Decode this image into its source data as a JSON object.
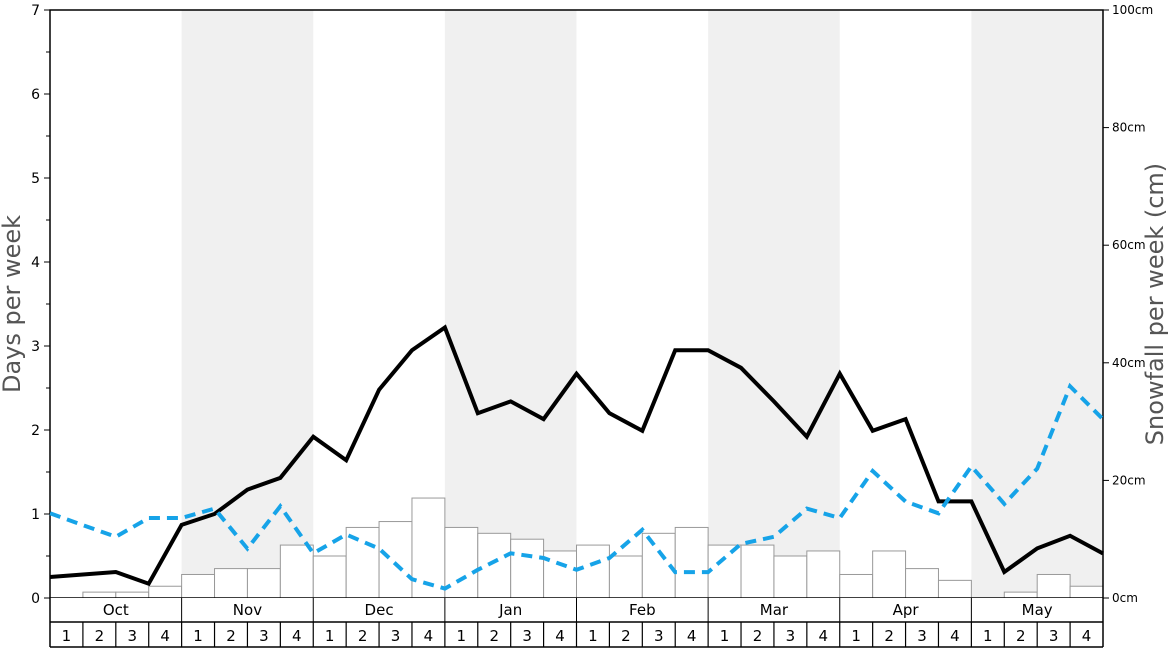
{
  "chart_data": {
    "type": "bar+line",
    "title": "",
    "ylabel_left": "Days per week",
    "ylabel_right": "Snowfall per week (cm)",
    "ylim_left": [
      0,
      7
    ],
    "ylim_right": [
      0,
      100
    ],
    "yticks_left": [
      "0",
      "1",
      "2",
      "3",
      "4",
      "5",
      "6",
      "7"
    ],
    "yticks_right": [
      "0cm",
      "20cm",
      "40cm",
      "60cm",
      "80cm",
      "100cm"
    ],
    "months": [
      "Oct",
      "Nov",
      "Dec",
      "Jan",
      "Feb",
      "Mar",
      "Apr",
      "May"
    ],
    "weeks": [
      "1",
      "2",
      "3",
      "4"
    ],
    "shaded_months": [
      "Nov",
      "Jan",
      "Mar",
      "May"
    ],
    "colors": {
      "days_line": "#000000",
      "snowfall_line": "#16a3e8",
      "bars_fill": "#ffffff",
      "bars_stroke": "#999999",
      "shade": "#f0f0f0"
    },
    "bars_days_per_week": [
      0,
      0.07,
      0.07,
      0.14,
      0.28,
      0.35,
      0.35,
      0.63,
      0.5,
      0.84,
      0.91,
      1.19,
      0.84,
      0.77,
      0.7,
      0.56,
      0.63,
      0.5,
      0.77,
      0.84,
      0.63,
      0.63,
      0.5,
      0.56,
      0.28,
      0.56,
      0.35,
      0.21,
      0,
      0.07,
      0.28,
      0.14
    ],
    "series": [
      {
        "style": "solid",
        "axis": "left",
        "values": [
          0.25,
          0.28,
          0.31,
          0.17,
          0.87,
          1.0,
          1.29,
          1.43,
          1.92,
          1.64,
          2.48,
          2.95,
          3.22,
          2.2,
          2.34,
          2.13,
          2.67,
          2.2,
          1.99,
          2.95,
          2.95,
          2.74,
          2.34,
          1.92,
          2.67,
          1.99,
          2.13,
          1.15,
          1.15,
          0.31,
          0.59,
          0.74,
          0.53
        ]
      },
      {
        "style": "dashed",
        "axis": "right",
        "values": [
          14.4,
          12.4,
          10.4,
          13.6,
          13.6,
          15.2,
          8.4,
          15.6,
          7.6,
          10.8,
          8.4,
          3.2,
          1.6,
          4.8,
          7.6,
          6.8,
          4.8,
          6.8,
          11.6,
          4.4,
          4.4,
          9.2,
          10.4,
          15.2,
          13.6,
          21.6,
          16.4,
          14.4,
          22.4,
          16.0,
          22.0,
          36.0,
          30.4
        ]
      }
    ]
  }
}
